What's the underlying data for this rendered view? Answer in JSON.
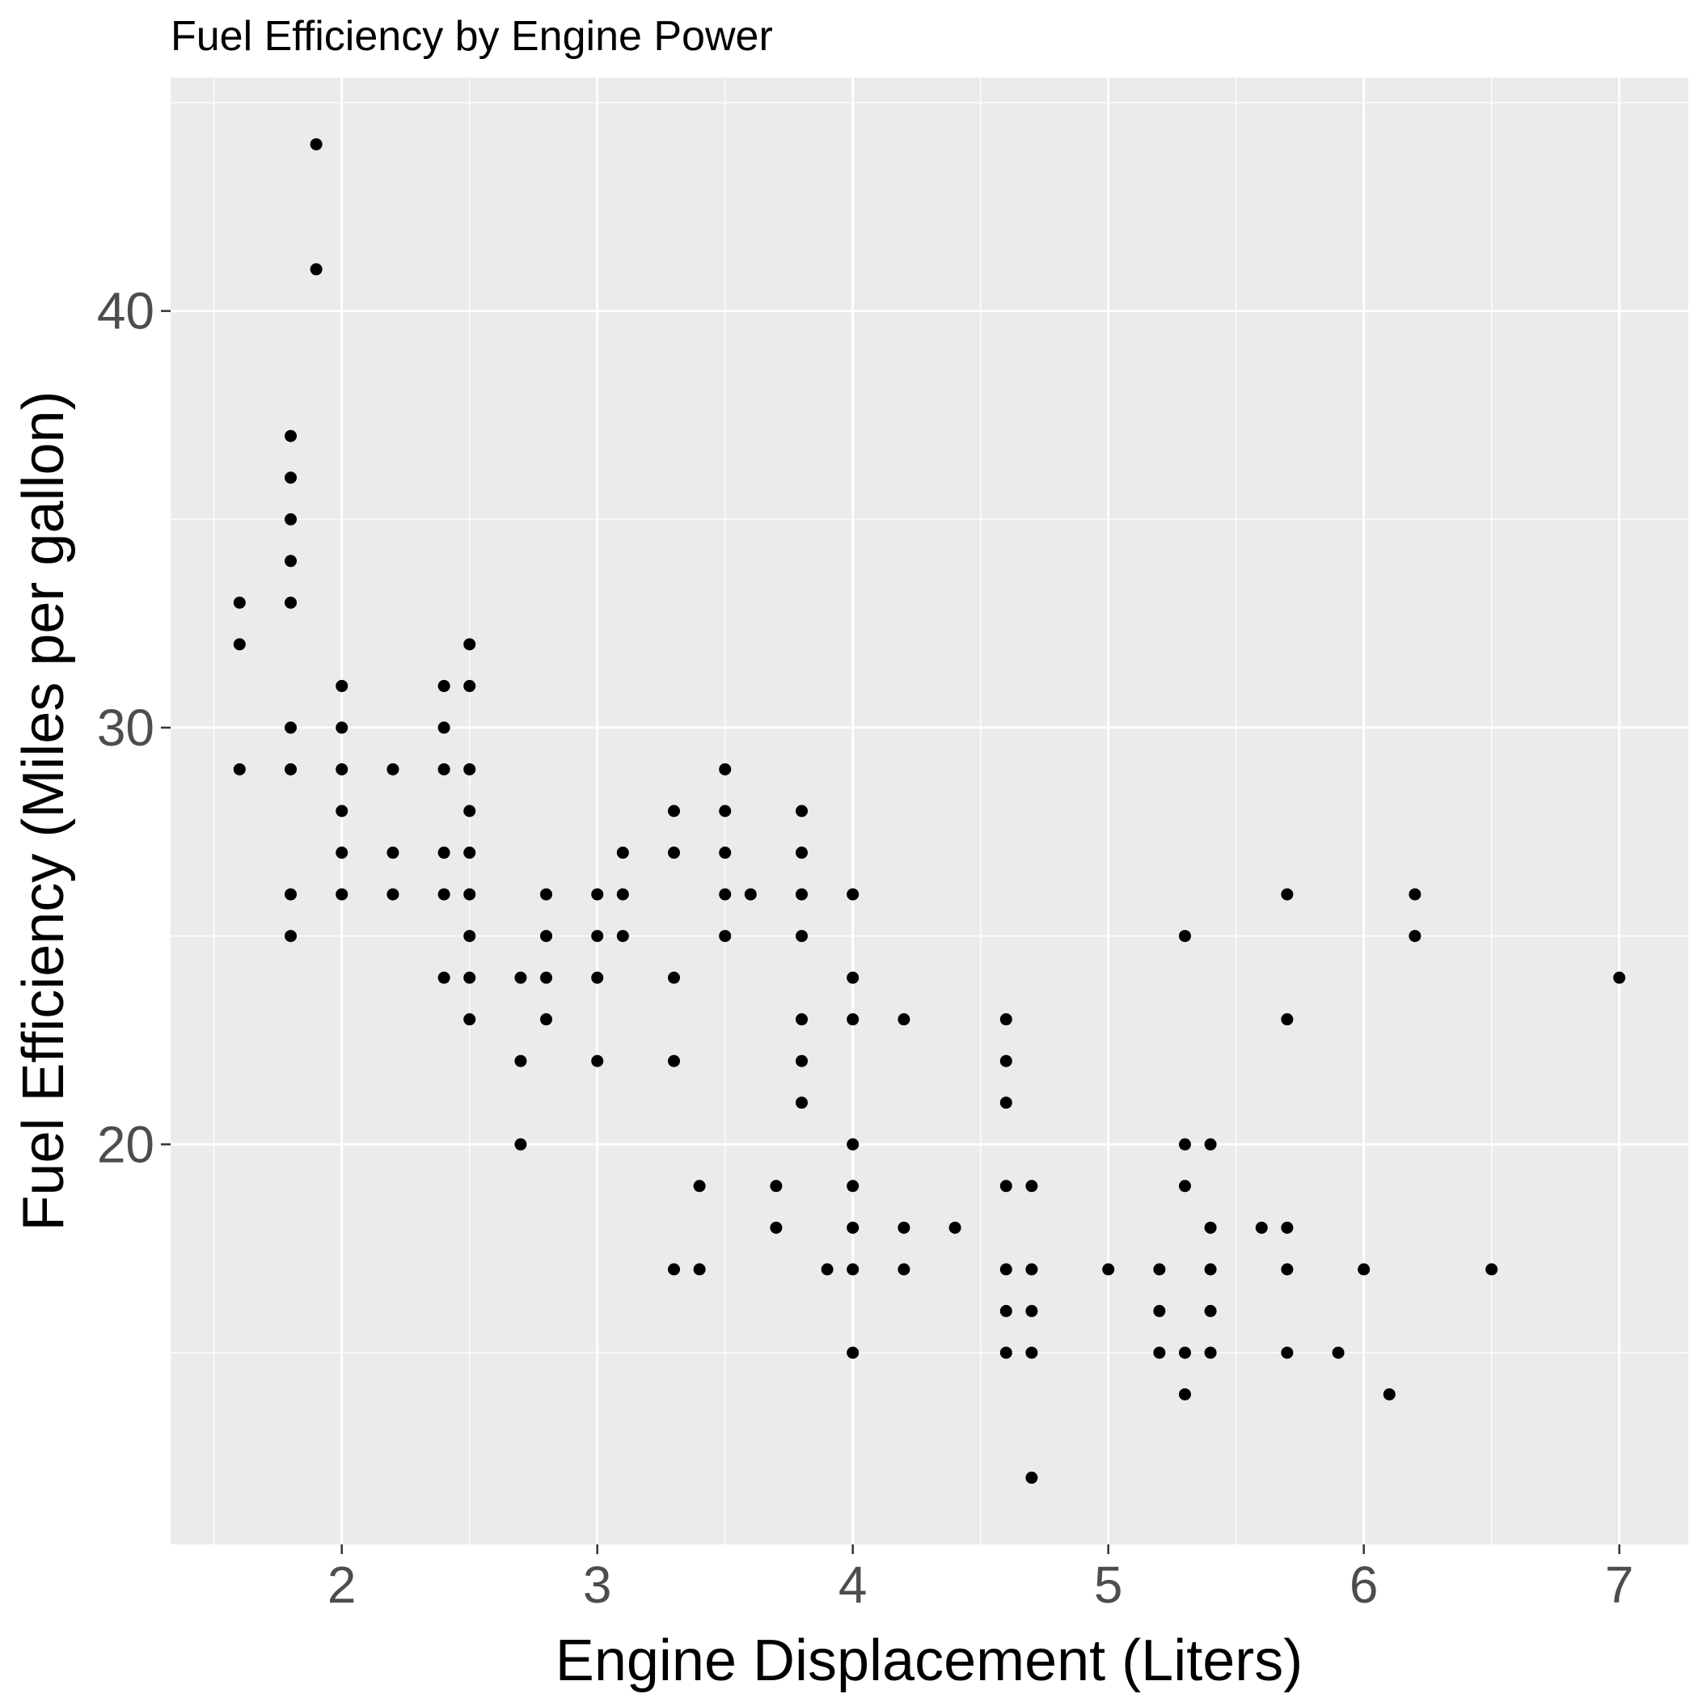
{
  "chart_data": {
    "type": "scatter",
    "title": "Fuel Efficiency by Engine Power",
    "xlabel": "Engine Displacement (Liters)",
    "ylabel": "Fuel Efficiency (Miles per gallon)",
    "xlim": [
      1.33,
      7.27
    ],
    "ylim": [
      10.4,
      45.6
    ],
    "x_ticks": [
      2,
      3,
      4,
      5,
      6,
      7
    ],
    "y_ticks": [
      20,
      30,
      40
    ],
    "x_tick_labels": [
      "2",
      "3",
      "4",
      "5",
      "6",
      "7"
    ],
    "y_tick_labels": [
      "20",
      "30",
      "40"
    ],
    "grid": true,
    "colors": {
      "panel": "#ebebeb",
      "grid": "#ffffff",
      "point": "#000000",
      "tick_text": "#4d4d4d"
    },
    "points": [
      {
        "x": 1.6,
        "y": 33
      },
      {
        "x": 1.6,
        "y": 32
      },
      {
        "x": 1.6,
        "y": 29
      },
      {
        "x": 1.8,
        "y": 37
      },
      {
        "x": 1.8,
        "y": 36
      },
      {
        "x": 1.8,
        "y": 35
      },
      {
        "x": 1.8,
        "y": 34
      },
      {
        "x": 1.8,
        "y": 33
      },
      {
        "x": 1.8,
        "y": 30
      },
      {
        "x": 1.8,
        "y": 29
      },
      {
        "x": 1.8,
        "y": 26
      },
      {
        "x": 1.8,
        "y": 25
      },
      {
        "x": 1.9,
        "y": 44
      },
      {
        "x": 1.9,
        "y": 41
      },
      {
        "x": 2.0,
        "y": 31
      },
      {
        "x": 2.0,
        "y": 30
      },
      {
        "x": 2.0,
        "y": 29
      },
      {
        "x": 2.0,
        "y": 28
      },
      {
        "x": 2.0,
        "y": 27
      },
      {
        "x": 2.0,
        "y": 26
      },
      {
        "x": 2.2,
        "y": 29
      },
      {
        "x": 2.2,
        "y": 27
      },
      {
        "x": 2.2,
        "y": 26
      },
      {
        "x": 2.4,
        "y": 31
      },
      {
        "x": 2.4,
        "y": 30
      },
      {
        "x": 2.4,
        "y": 29
      },
      {
        "x": 2.4,
        "y": 27
      },
      {
        "x": 2.4,
        "y": 26
      },
      {
        "x": 2.4,
        "y": 24
      },
      {
        "x": 2.5,
        "y": 32
      },
      {
        "x": 2.5,
        "y": 31
      },
      {
        "x": 2.5,
        "y": 29
      },
      {
        "x": 2.5,
        "y": 28
      },
      {
        "x": 2.5,
        "y": 27
      },
      {
        "x": 2.5,
        "y": 26
      },
      {
        "x": 2.5,
        "y": 25
      },
      {
        "x": 2.5,
        "y": 24
      },
      {
        "x": 2.5,
        "y": 23
      },
      {
        "x": 2.7,
        "y": 24
      },
      {
        "x": 2.7,
        "y": 22
      },
      {
        "x": 2.7,
        "y": 20
      },
      {
        "x": 2.8,
        "y": 26
      },
      {
        "x": 2.8,
        "y": 25
      },
      {
        "x": 2.8,
        "y": 24
      },
      {
        "x": 2.8,
        "y": 23
      },
      {
        "x": 3.0,
        "y": 26
      },
      {
        "x": 3.0,
        "y": 25
      },
      {
        "x": 3.0,
        "y": 24
      },
      {
        "x": 3.0,
        "y": 22
      },
      {
        "x": 3.1,
        "y": 27
      },
      {
        "x": 3.1,
        "y": 26
      },
      {
        "x": 3.1,
        "y": 25
      },
      {
        "x": 3.3,
        "y": 28
      },
      {
        "x": 3.3,
        "y": 27
      },
      {
        "x": 3.3,
        "y": 24
      },
      {
        "x": 3.3,
        "y": 22
      },
      {
        "x": 3.3,
        "y": 17
      },
      {
        "x": 3.4,
        "y": 19
      },
      {
        "x": 3.4,
        "y": 17
      },
      {
        "x": 3.5,
        "y": 29
      },
      {
        "x": 3.5,
        "y": 28
      },
      {
        "x": 3.5,
        "y": 27
      },
      {
        "x": 3.5,
        "y": 26
      },
      {
        "x": 3.5,
        "y": 25
      },
      {
        "x": 3.6,
        "y": 26
      },
      {
        "x": 3.7,
        "y": 19
      },
      {
        "x": 3.7,
        "y": 18
      },
      {
        "x": 3.8,
        "y": 28
      },
      {
        "x": 3.8,
        "y": 27
      },
      {
        "x": 3.8,
        "y": 26
      },
      {
        "x": 3.8,
        "y": 25
      },
      {
        "x": 3.8,
        "y": 23
      },
      {
        "x": 3.8,
        "y": 22
      },
      {
        "x": 3.8,
        "y": 21
      },
      {
        "x": 3.9,
        "y": 17
      },
      {
        "x": 4.0,
        "y": 26
      },
      {
        "x": 4.0,
        "y": 24
      },
      {
        "x": 4.0,
        "y": 23
      },
      {
        "x": 4.0,
        "y": 20
      },
      {
        "x": 4.0,
        "y": 19
      },
      {
        "x": 4.0,
        "y": 18
      },
      {
        "x": 4.0,
        "y": 17
      },
      {
        "x": 4.0,
        "y": 15
      },
      {
        "x": 4.2,
        "y": 23
      },
      {
        "x": 4.2,
        "y": 18
      },
      {
        "x": 4.2,
        "y": 17
      },
      {
        "x": 4.4,
        "y": 18
      },
      {
        "x": 4.6,
        "y": 23
      },
      {
        "x": 4.6,
        "y": 22
      },
      {
        "x": 4.6,
        "y": 21
      },
      {
        "x": 4.6,
        "y": 19
      },
      {
        "x": 4.6,
        "y": 17
      },
      {
        "x": 4.6,
        "y": 16
      },
      {
        "x": 4.6,
        "y": 15
      },
      {
        "x": 4.7,
        "y": 19
      },
      {
        "x": 4.7,
        "y": 17
      },
      {
        "x": 4.7,
        "y": 16
      },
      {
        "x": 4.7,
        "y": 15
      },
      {
        "x": 4.7,
        "y": 12
      },
      {
        "x": 5.0,
        "y": 17
      },
      {
        "x": 5.2,
        "y": 17
      },
      {
        "x": 5.2,
        "y": 16
      },
      {
        "x": 5.2,
        "y": 15
      },
      {
        "x": 5.3,
        "y": 25
      },
      {
        "x": 5.3,
        "y": 20
      },
      {
        "x": 5.3,
        "y": 19
      },
      {
        "x": 5.3,
        "y": 15
      },
      {
        "x": 5.3,
        "y": 14
      },
      {
        "x": 5.4,
        "y": 20
      },
      {
        "x": 5.4,
        "y": 18
      },
      {
        "x": 5.4,
        "y": 17
      },
      {
        "x": 5.4,
        "y": 16
      },
      {
        "x": 5.4,
        "y": 15
      },
      {
        "x": 5.6,
        "y": 18
      },
      {
        "x": 5.7,
        "y": 26
      },
      {
        "x": 5.7,
        "y": 23
      },
      {
        "x": 5.7,
        "y": 18
      },
      {
        "x": 5.7,
        "y": 17
      },
      {
        "x": 5.7,
        "y": 15
      },
      {
        "x": 5.9,
        "y": 15
      },
      {
        "x": 6.0,
        "y": 17
      },
      {
        "x": 6.1,
        "y": 14
      },
      {
        "x": 6.2,
        "y": 26
      },
      {
        "x": 6.2,
        "y": 25
      },
      {
        "x": 6.5,
        "y": 17
      },
      {
        "x": 7.0,
        "y": 24
      }
    ]
  }
}
